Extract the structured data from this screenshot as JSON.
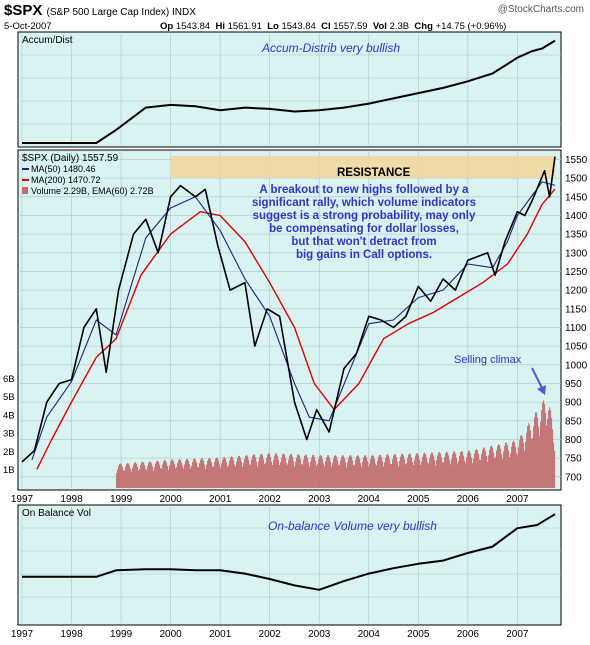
{
  "header": {
    "symbol": "$SPX",
    "name": "(S&P 500 Large Cap Index) INDX",
    "date": "5-Oct-2007",
    "open_label": "Op",
    "open": "1543.84",
    "high_label": "Hi",
    "high": "1561.91",
    "low_label": "Lo",
    "low": "1543.84",
    "close_label": "Cl",
    "close": "1557.59",
    "vol_label": "Vol",
    "vol": "2.3B",
    "chg_label": "Chg",
    "chg": "+14.75 (+0.96%)",
    "brand": "@StockCharts.com"
  },
  "panels": {
    "accum": {
      "label": "Accum/Dist",
      "annotation": "Accum-Distrib very bullish"
    },
    "obv": {
      "label": "On Balance Vol",
      "annotation": "On-balance Volume very bullish"
    },
    "price": {
      "legend_main": "$SPX (Daily) 1557.59",
      "legend_ma50": "MA(50) 1480.46",
      "legend_ma200": "MA(200) 1470.72",
      "legend_vol": "Volume 2.29B, EMA(60) 2.72B",
      "resistance_label": "RESISTANCE",
      "annotation_lines": [
        "A breakout to new highs followed by a",
        "significant rally, which volume indicators",
        "suggest is a strong probability, may only",
        "be compensating for dollar losses,",
        "but that won't detract from",
        "big gains in Call options."
      ],
      "climax_label": "Selling climax"
    }
  },
  "colors": {
    "panel_bg": "#d9f2f2",
    "grid": "#a8c8c8",
    "price_line": "#000000",
    "ma50": "#1a237e",
    "ma200": "#e00000",
    "volume": "#c36b6b",
    "resistance_band": "#f2d79a",
    "annotation_text": "#3333cc",
    "arrow": "#4a5bd4"
  },
  "chart_data": [
    {
      "type": "line",
      "title": "Accum/Dist",
      "x": [
        1997.0,
        1998.5,
        1998.9,
        1999.5,
        2000.0,
        2000.5,
        2001.0,
        2001.5,
        2002.0,
        2002.5,
        2003.0,
        2003.5,
        2004.0,
        2004.5,
        2005.0,
        2005.5,
        2006.0,
        2006.5,
        2007.0,
        2007.3,
        2007.5,
        2007.76
      ],
      "y": [
        0,
        0,
        10,
        27,
        29,
        28,
        25,
        27,
        26,
        24,
        25,
        27,
        30,
        34,
        38,
        42,
        47,
        53,
        65,
        70,
        72,
        78
      ],
      "ylabel": "",
      "note": "indicator level in relative units (no scale printed)"
    },
    {
      "type": "line",
      "title": "$SPX (Daily) 1557.59",
      "x_ticks": [
        "1997",
        "1998",
        "1999",
        "2000",
        "2001",
        "2002",
        "2003",
        "2004",
        "2005",
        "2006",
        "2007"
      ],
      "y_ticks": [
        700,
        750,
        800,
        850,
        900,
        950,
        1000,
        1050,
        1100,
        1150,
        1200,
        1250,
        1300,
        1350,
        1400,
        1450,
        1500,
        1550
      ],
      "ylim": [
        670,
        1570
      ],
      "volume_ticks": [
        "1B",
        "2B",
        "3B",
        "4B",
        "5B",
        "6B"
      ],
      "series": [
        {
          "name": "$SPX",
          "x": [
            1997.0,
            1997.25,
            1997.5,
            1997.75,
            1998.0,
            1998.25,
            1998.5,
            1998.7,
            1998.95,
            1999.25,
            1999.5,
            1999.75,
            2000.0,
            2000.2,
            2000.5,
            2000.7,
            2000.95,
            2001.2,
            2001.5,
            2001.7,
            2001.95,
            2002.2,
            2002.5,
            2002.75,
            2002.95,
            2003.2,
            2003.5,
            2003.75,
            2004.0,
            2004.25,
            2004.5,
            2004.75,
            2005.0,
            2005.25,
            2005.5,
            2005.75,
            2006.0,
            2006.4,
            2006.55,
            2006.75,
            2007.0,
            2007.15,
            2007.3,
            2007.55,
            2007.65,
            2007.76
          ],
          "y": [
            740,
            770,
            900,
            950,
            960,
            1100,
            1150,
            980,
            1200,
            1350,
            1390,
            1300,
            1450,
            1480,
            1450,
            1470,
            1320,
            1200,
            1220,
            1050,
            1150,
            1130,
            900,
            800,
            880,
            820,
            990,
            1030,
            1130,
            1120,
            1100,
            1130,
            1210,
            1170,
            1230,
            1200,
            1280,
            1300,
            1240,
            1330,
            1410,
            1400,
            1440,
            1520,
            1450,
            1557.59
          ]
        },
        {
          "name": "MA(50) 1480.46",
          "x": [
            1997.2,
            1997.5,
            1998.0,
            1998.5,
            1998.9,
            1999.5,
            2000.0,
            2000.5,
            2001.0,
            2001.5,
            2002.0,
            2002.5,
            2002.8,
            2003.2,
            2003.6,
            2004.0,
            2004.5,
            2005.0,
            2005.5,
            2006.0,
            2006.5,
            2006.8,
            2007.0,
            2007.5,
            2007.76
          ],
          "y": [
            745,
            860,
            955,
            1120,
            1080,
            1340,
            1420,
            1450,
            1360,
            1230,
            1130,
            950,
            860,
            850,
            980,
            1110,
            1120,
            1180,
            1200,
            1270,
            1260,
            1330,
            1400,
            1490,
            1480.46
          ]
        },
        {
          "name": "MA(200) 1470.72",
          "x": [
            1997.3,
            1997.6,
            1998.0,
            1998.5,
            1998.9,
            1999.4,
            2000.0,
            2000.6,
            2001.0,
            2001.5,
            2002.0,
            2002.5,
            2002.9,
            2003.3,
            2003.8,
            2004.3,
            2004.8,
            2005.3,
            2005.8,
            2006.3,
            2006.8,
            2007.2,
            2007.5,
            2007.76
          ],
          "y": [
            720,
            800,
            900,
            1020,
            1070,
            1240,
            1350,
            1410,
            1400,
            1330,
            1220,
            1100,
            950,
            880,
            950,
            1070,
            1110,
            1140,
            1180,
            1220,
            1270,
            1350,
            1430,
            1470.72
          ]
        }
      ],
      "volume": {
        "ylim_billions": [
          0,
          7
        ],
        "x": [
          1998.9,
          2000.0,
          2001.0,
          2002.0,
          2003.0,
          2004.0,
          2005.0,
          2006.0,
          2007.0,
          2007.6,
          2007.76
        ],
        "y_billions": [
          1.1,
          1.3,
          1.4,
          1.6,
          1.5,
          1.5,
          1.6,
          1.7,
          2.2,
          4.3,
          2.29
        ]
      },
      "resistance_band": [
        1500,
        1560
      ]
    },
    {
      "type": "line",
      "title": "On Balance Vol",
      "x": [
        1997.0,
        1998.5,
        1998.9,
        1999.5,
        2000.0,
        2000.5,
        2001.0,
        2001.5,
        2002.0,
        2002.5,
        2003.0,
        2003.5,
        2004.0,
        2004.5,
        2005.0,
        2005.5,
        2006.0,
        2006.5,
        2007.0,
        2007.4,
        2007.76
      ],
      "y": [
        0,
        0,
        6,
        7,
        7,
        6,
        6,
        3,
        -2,
        -8,
        -12,
        -4,
        3,
        8,
        12,
        15,
        22,
        28,
        45,
        48,
        58
      ],
      "ylabel": "",
      "note": "indicator level in relative units (no scale printed)"
    }
  ]
}
